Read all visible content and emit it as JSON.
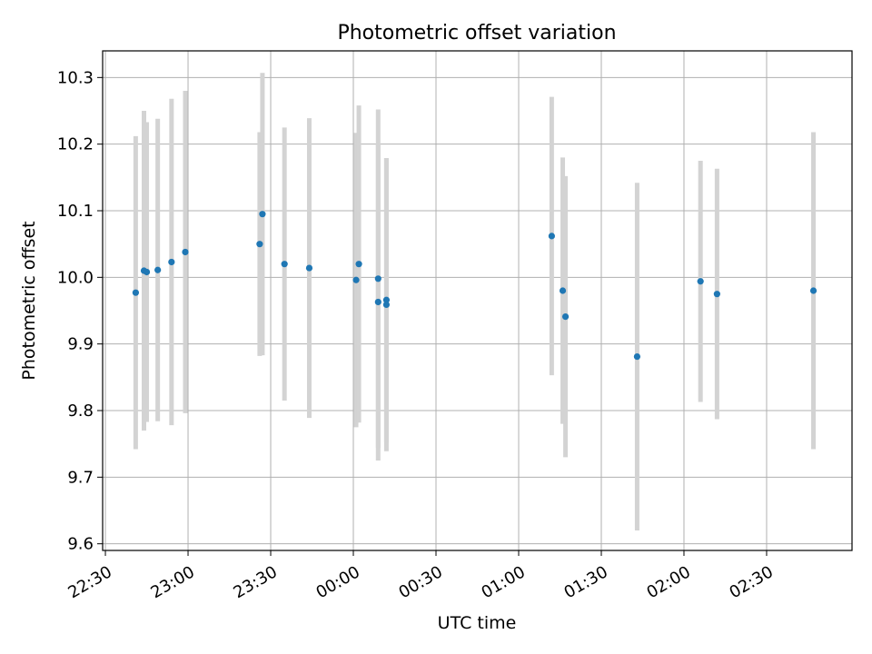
{
  "chart_data": {
    "type": "scatter",
    "title": "Photometric offset variation",
    "xlabel": "UTC time",
    "ylabel": "Photometric offset",
    "xticks": [
      "22:30",
      "23:00",
      "23:30",
      "00:00",
      "00:30",
      "01:00",
      "01:30",
      "02:00",
      "02:30"
    ],
    "yticks": [
      "9.6",
      "9.7",
      "9.8",
      "9.9",
      "10.0",
      "10.1",
      "10.2",
      "10.3"
    ],
    "xlim": [
      "22:29",
      "03:01"
    ],
    "ylim": [
      9.59,
      10.34
    ],
    "grid": true,
    "marker_color": "#1f77b4",
    "errorbar_color": "#d3d3d3",
    "points": [
      {
        "time": "22:41",
        "y": 9.977,
        "err": 0.235
      },
      {
        "time": "22:44",
        "y": 10.01,
        "err": 0.24
      },
      {
        "time": "22:45",
        "y": 10.008,
        "err": 0.225
      },
      {
        "time": "22:49",
        "y": 10.011,
        "err": 0.227
      },
      {
        "time": "22:54",
        "y": 10.023,
        "err": 0.245
      },
      {
        "time": "22:59",
        "y": 10.038,
        "err": 0.242
      },
      {
        "time": "23:26",
        "y": 10.05,
        "err": 0.168
      },
      {
        "time": "23:27",
        "y": 10.095,
        "err": 0.212
      },
      {
        "time": "23:35",
        "y": 10.02,
        "err": 0.205
      },
      {
        "time": "23:44",
        "y": 10.014,
        "err": 0.225
      },
      {
        "time": "00:01",
        "y": 9.996,
        "err": 0.221
      },
      {
        "time": "00:02",
        "y": 10.02,
        "err": 0.238
      },
      {
        "time": "00:09",
        "y": 9.998,
        "err": 0.254
      },
      {
        "time": "00:09",
        "y": 9.963,
        "err": 0.238
      },
      {
        "time": "00:12",
        "y": 9.966,
        "err": 0.213
      },
      {
        "time": "00:12",
        "y": 9.959,
        "err": 0.22
      },
      {
        "time": "01:12",
        "y": 10.062,
        "err": 0.209
      },
      {
        "time": "01:16",
        "y": 9.98,
        "err": 0.2
      },
      {
        "time": "01:17",
        "y": 9.941,
        "err": 0.211
      },
      {
        "time": "01:43",
        "y": 9.881,
        "err": 0.261
      },
      {
        "time": "02:06",
        "y": 9.994,
        "err": 0.181
      },
      {
        "time": "02:12",
        "y": 9.975,
        "err": 0.188
      },
      {
        "time": "02:47",
        "y": 9.98,
        "err": 0.238
      }
    ]
  }
}
